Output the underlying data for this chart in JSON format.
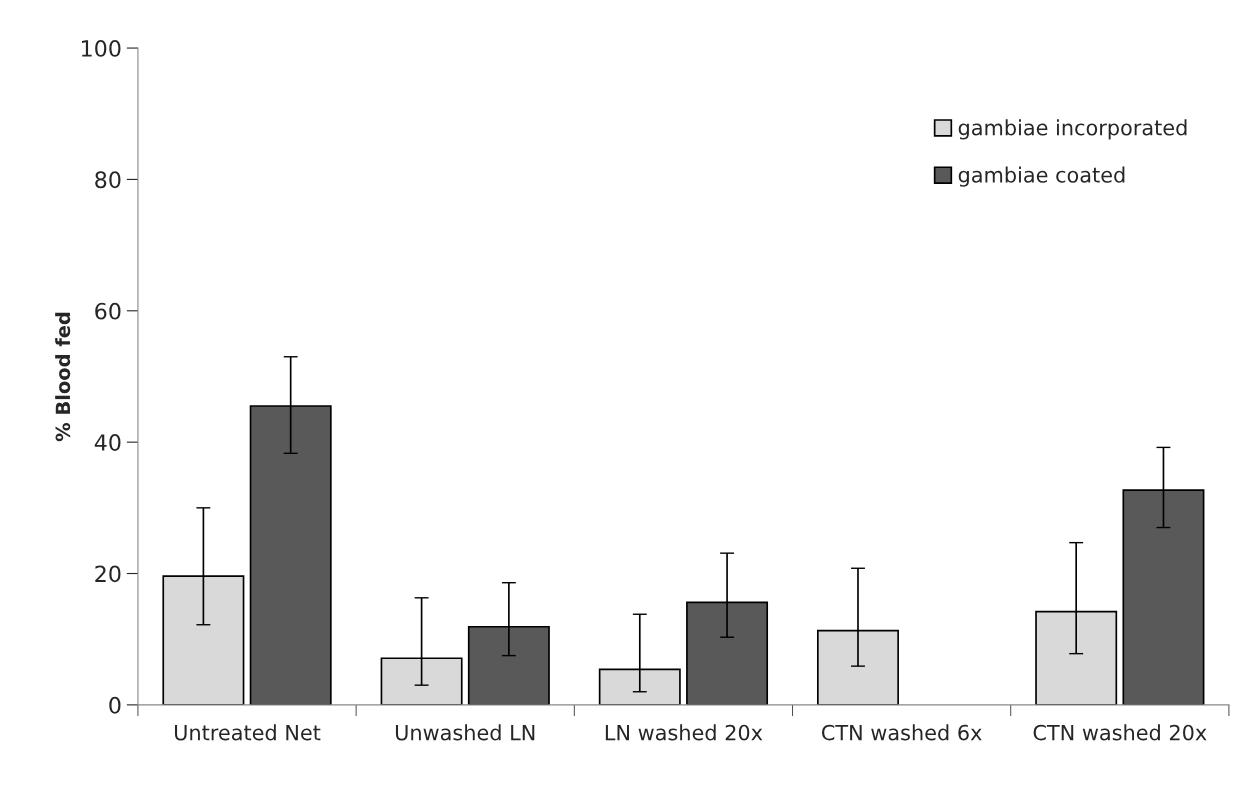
{
  "chart_data": {
    "type": "bar",
    "ylabel": "% Blood fed",
    "categories": [
      "Untreated Net",
      "Unwashed LN",
      "LN washed 20x",
      "CTN washed 6x",
      "CTN washed 20x"
    ],
    "series": [
      {
        "name": "gambiae incorporated",
        "color": "#d9d9d9",
        "values": [
          19.6,
          7.1,
          5.4,
          11.3,
          14.2
        ],
        "errors": [
          [
            12.2,
            30.0
          ],
          [
            3.0,
            16.3
          ],
          [
            2.0,
            13.8
          ],
          [
            5.9,
            20.8
          ],
          [
            7.8,
            24.7
          ]
        ]
      },
      {
        "name": "gambiae coated",
        "color": "#595959",
        "values": [
          45.5,
          11.9,
          15.6,
          null,
          32.7
        ],
        "errors": [
          [
            38.3,
            53.0
          ],
          [
            7.5,
            18.6
          ],
          [
            10.3,
            23.1
          ],
          null,
          [
            27.0,
            39.2
          ]
        ]
      }
    ],
    "ylim": [
      0,
      100
    ],
    "yticks": [
      0,
      20,
      40,
      60,
      80,
      100
    ],
    "grid": false,
    "legend": "top right"
  }
}
